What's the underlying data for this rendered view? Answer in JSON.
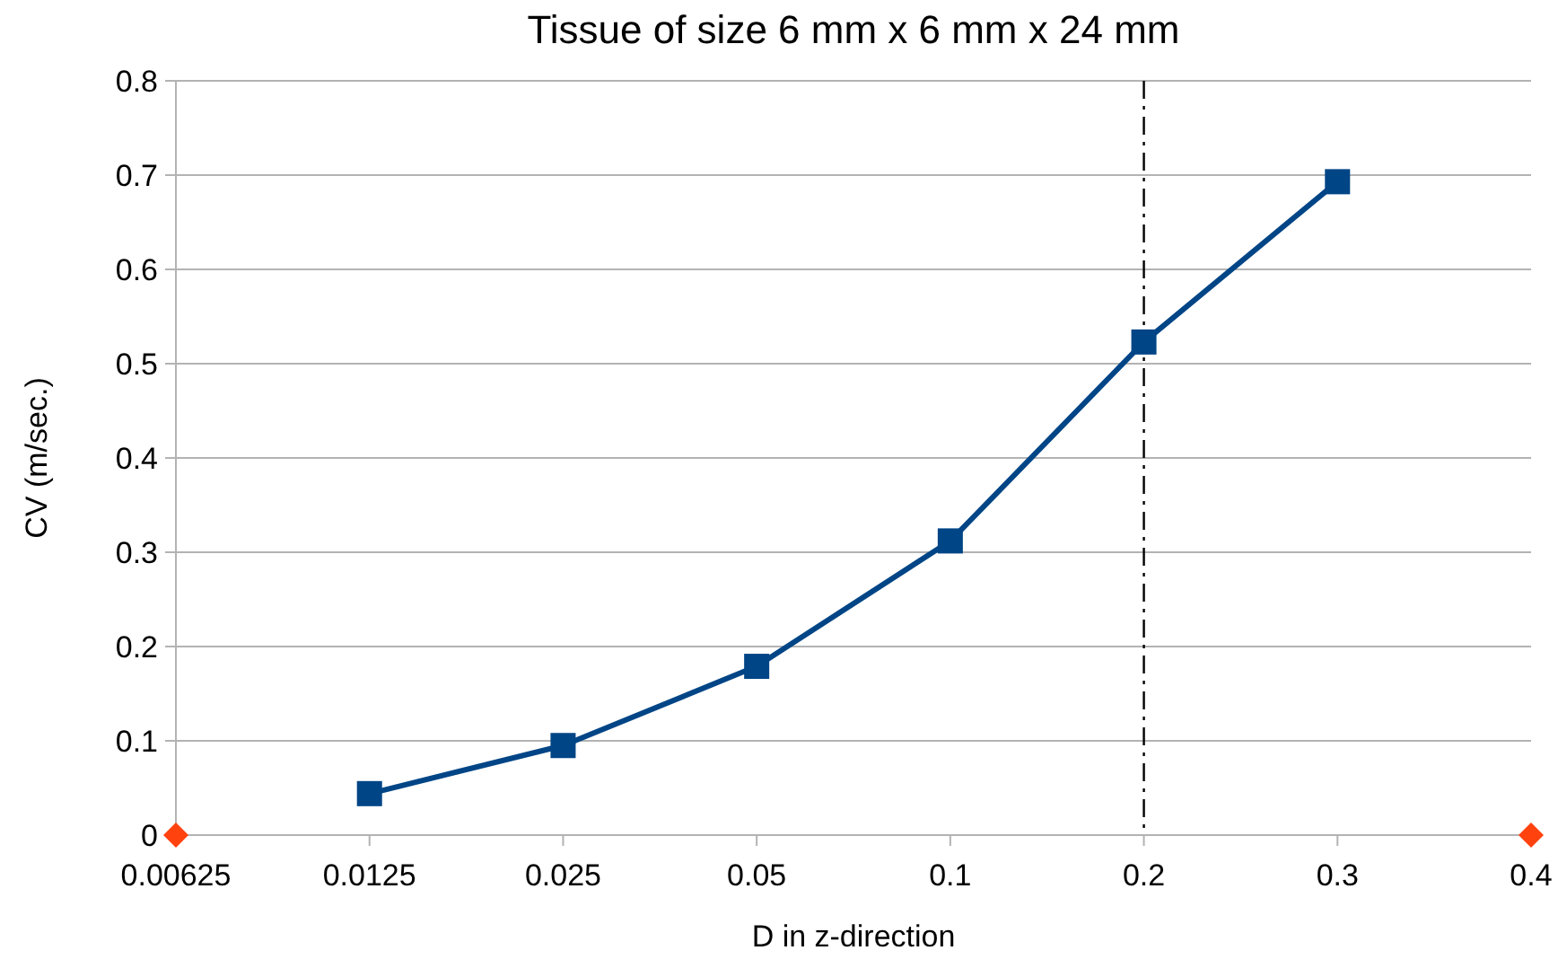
{
  "chart_data": {
    "type": "line",
    "title": "Tissue of size 6 mm x 6 mm x 24 mm",
    "xlabel": "D in z-direction",
    "ylabel": "CV (m/sec.)",
    "categories": [
      "0.00625",
      "0.0125",
      "0.025",
      "0.05",
      "0.1",
      "0.2",
      "0.3",
      "0.4"
    ],
    "series": [
      {
        "color": "#004586",
        "marker": "square",
        "values": [
          null,
          0.044,
          0.095,
          0.179,
          0.312,
          0.523,
          0.693,
          null
        ]
      },
      {
        "type": "scatter",
        "color": "#ff420e",
        "marker": "diamond",
        "values": [
          0,
          null,
          null,
          null,
          null,
          null,
          null,
          0
        ]
      }
    ],
    "ylim": [
      0,
      0.8
    ],
    "yticks": [
      0,
      0.1,
      0.2,
      0.3,
      0.4,
      0.5,
      0.6,
      0.7,
      0.8
    ],
    "grid": "y",
    "ref_lines": [
      {
        "axis": "x",
        "value": "0.2",
        "color": "#000000",
        "line_style": "dashed"
      }
    ]
  }
}
